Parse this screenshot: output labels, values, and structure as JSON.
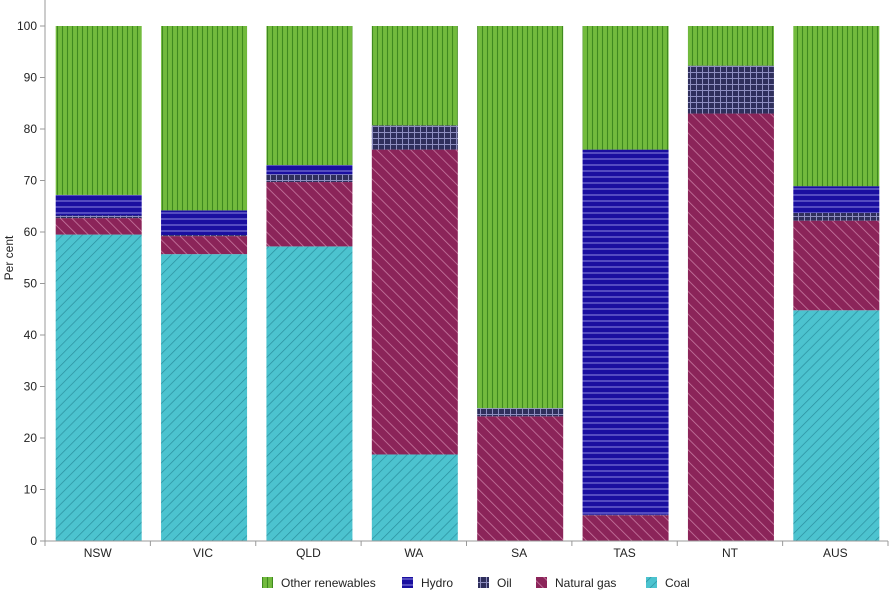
{
  "chart_data": {
    "type": "bar",
    "stacked": true,
    "title": "",
    "xlabel": "",
    "ylabel": "Per cent",
    "ylim": [
      0,
      100
    ],
    "yticks": [
      "0",
      "10",
      "20",
      "30",
      "40",
      "50",
      "60",
      "70",
      "80",
      "90",
      "100"
    ],
    "categories": [
      "NSW",
      "VIC",
      "QLD",
      "WA",
      "SA",
      "TAS",
      "NT",
      "AUS"
    ],
    "series": [
      {
        "name": "Coal",
        "color": "#4cc3cf",
        "pattern": "diagonal-hatch",
        "values": [
          59.5,
          55.7,
          57.2,
          16.8,
          0,
          0,
          0,
          44.8
        ]
      },
      {
        "name": "Natural gas",
        "color": "#8b2459",
        "pattern": "diagonal-hatch",
        "values": [
          3.2,
          3.5,
          12.5,
          59.2,
          24.2,
          5.0,
          83.0,
          17.4
        ]
      },
      {
        "name": "Oil",
        "color": "#2f2f5c",
        "pattern": "grid",
        "values": [
          0.5,
          0.2,
          1.5,
          4.7,
          1.6,
          0.1,
          9.3,
          1.5
        ]
      },
      {
        "name": "Hydro",
        "color": "#1a0fa0",
        "pattern": "horizontal-lines",
        "values": [
          4.0,
          4.8,
          1.8,
          0,
          0,
          70.9,
          0,
          5.2
        ]
      },
      {
        "name": "Other renewables",
        "color": "#72bb3d",
        "pattern": "vertical-lines",
        "values": [
          32.8,
          35.8,
          27.0,
          19.3,
          74.2,
          24.0,
          7.7,
          31.1
        ]
      }
    ],
    "legend": {
      "position": "bottom",
      "order": [
        "Other renewables",
        "Hydro",
        "Oil",
        "Natural gas",
        "Coal"
      ]
    },
    "grid": false
  }
}
